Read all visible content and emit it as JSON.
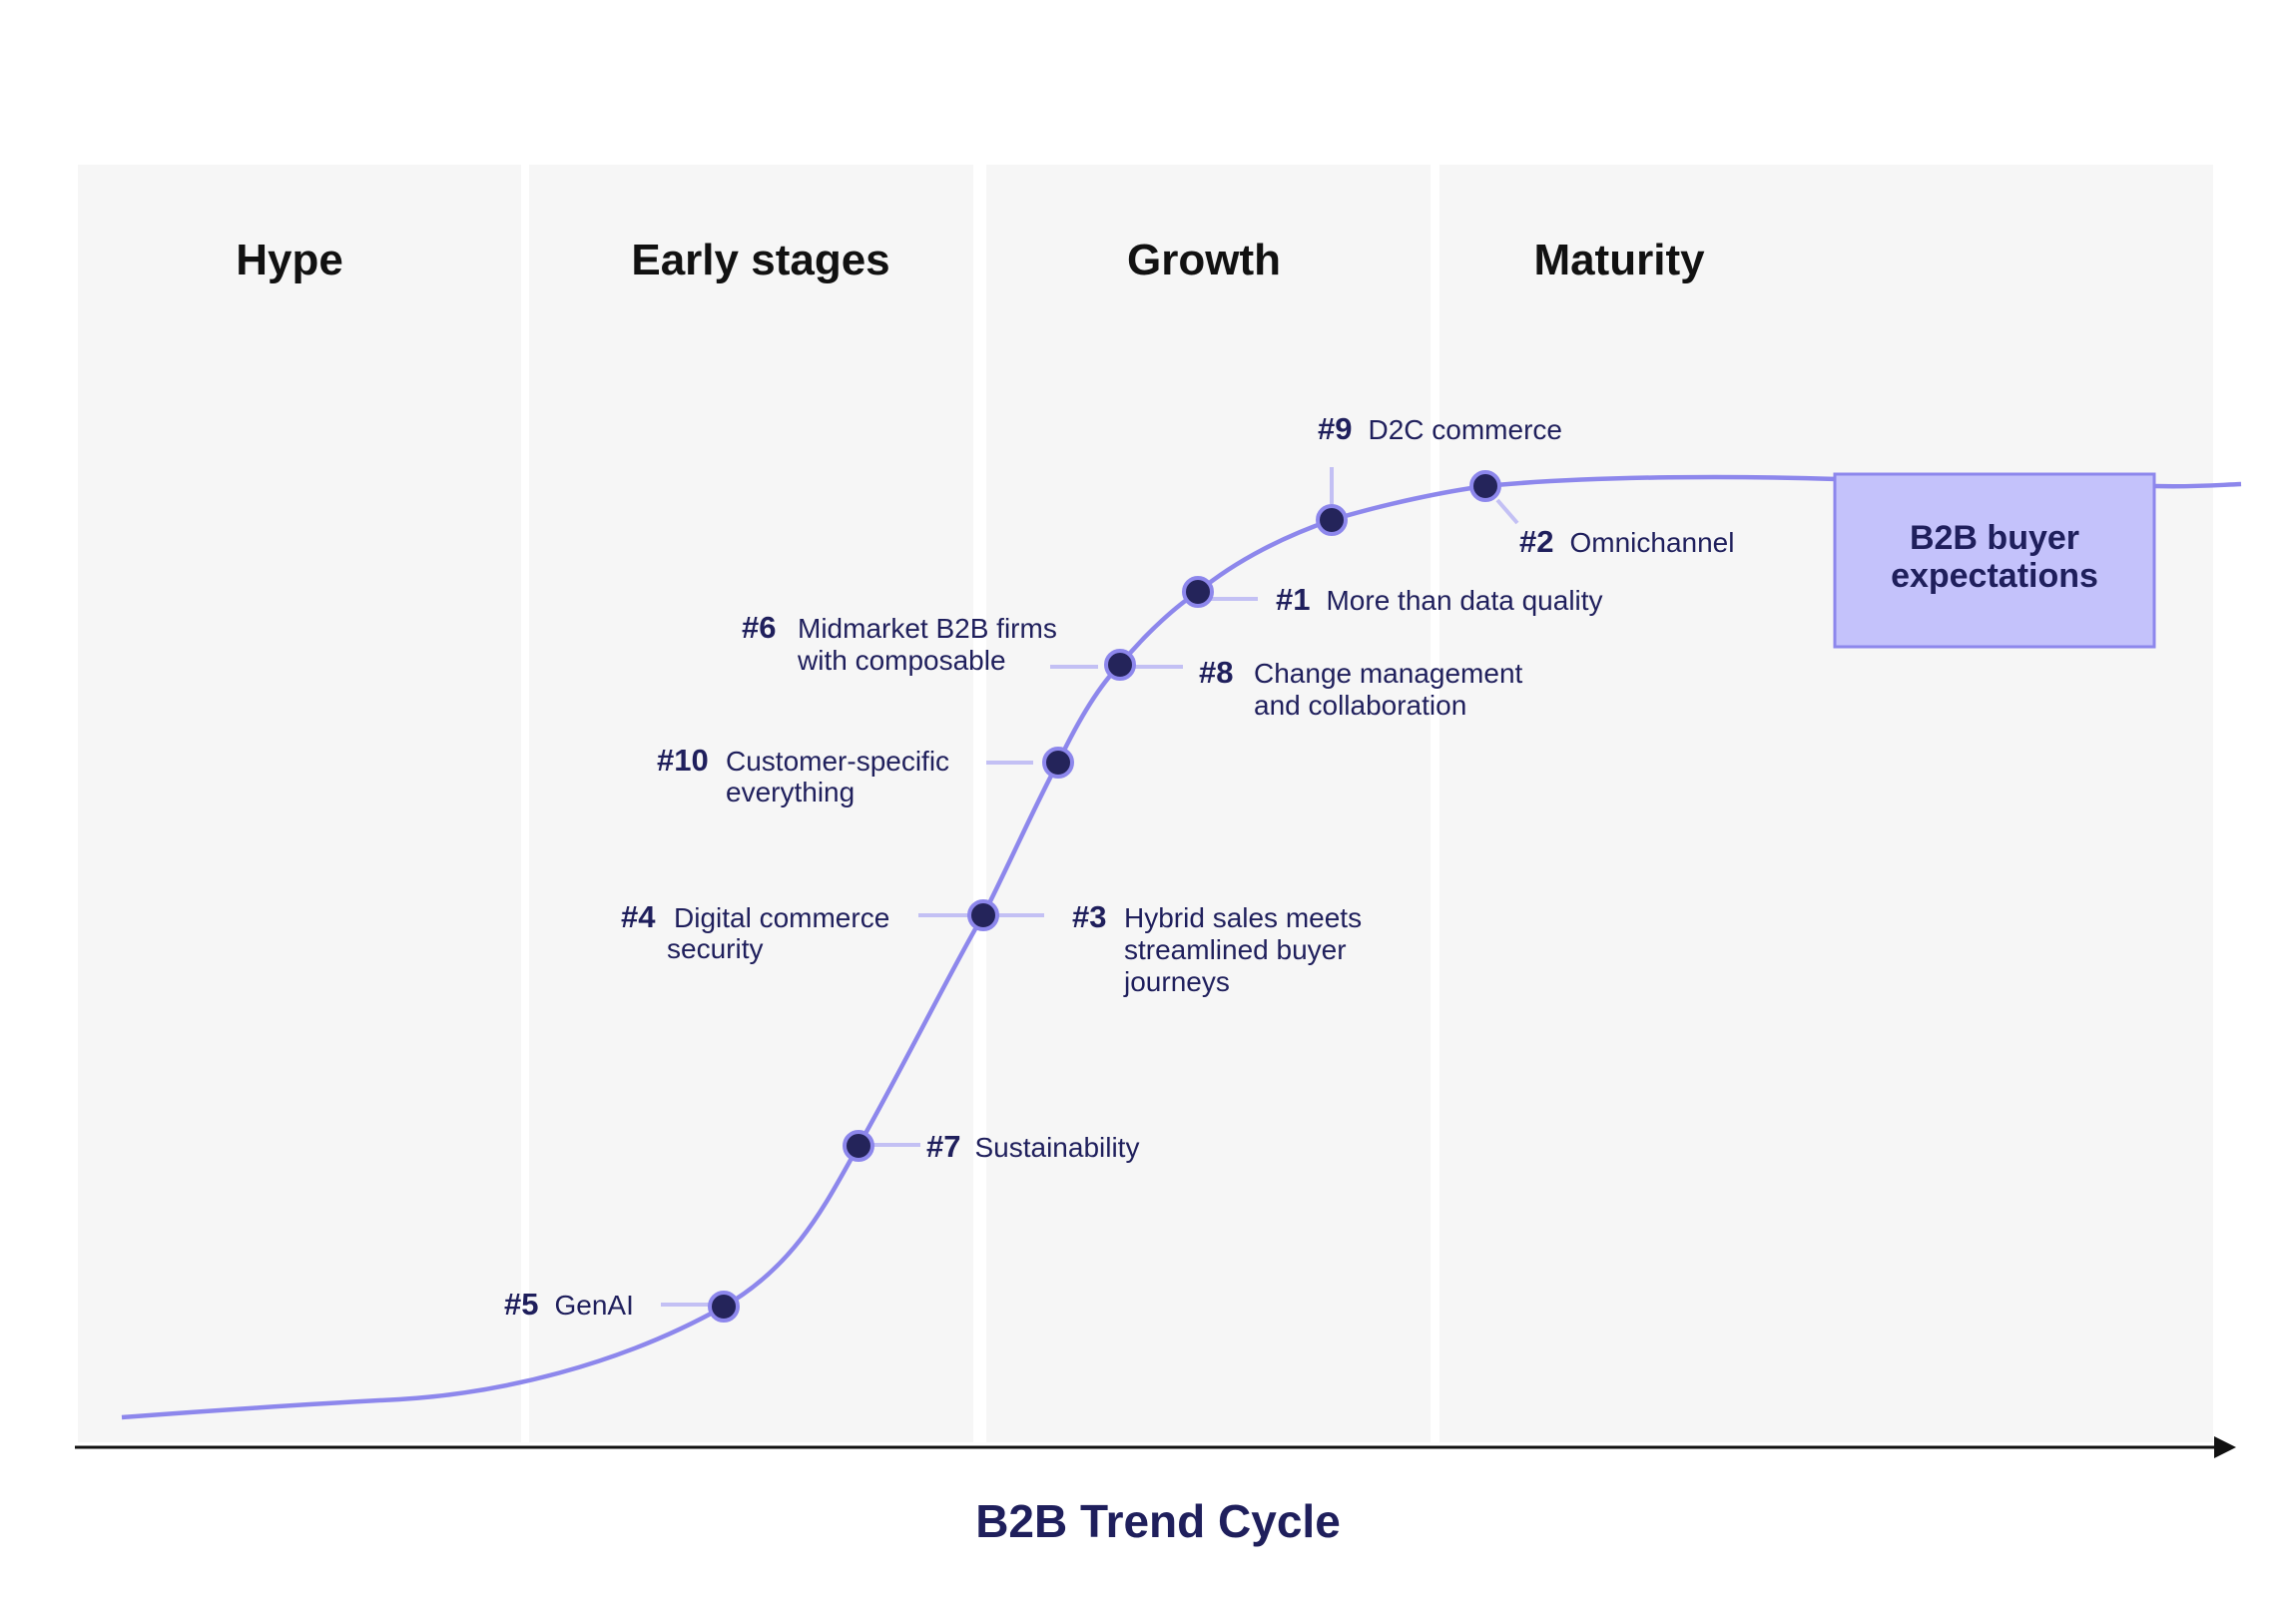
{
  "stages": [
    {
      "name": "Hype"
    },
    {
      "name": "Early stages"
    },
    {
      "name": "Growth"
    },
    {
      "name": "Maturity"
    }
  ],
  "axis_title": "B2B Trend Cycle",
  "box": {
    "line1": "B2B buyer",
    "line2": "expectations"
  },
  "trends": [
    {
      "num": "#5",
      "lines": [
        "GenAI"
      ]
    },
    {
      "num": "#7",
      "lines": [
        "Sustainability"
      ]
    },
    {
      "num": "#4",
      "lines": [
        "Digital commerce",
        "security"
      ]
    },
    {
      "num": "#3",
      "lines": [
        "Hybrid sales meets",
        "streamlined buyer",
        "journeys"
      ]
    },
    {
      "num": "#10",
      "lines": [
        "Customer-specific",
        "everything"
      ]
    },
    {
      "num": "#6",
      "lines": [
        "Midmarket B2B firms",
        "with composable"
      ]
    },
    {
      "num": "#8",
      "lines": [
        "Change management",
        "and collaboration"
      ]
    },
    {
      "num": "#1",
      "lines": [
        "More than data quality"
      ]
    },
    {
      "num": "#9",
      "lines": [
        "D2C commerce"
      ]
    },
    {
      "num": "#2",
      "lines": [
        "Omnichannel"
      ]
    }
  ],
  "colors": {
    "curve": "#8d87ec",
    "leader": "#c3c0f4",
    "dot": "#24245a",
    "dot_stroke": "#8d87ec",
    "panel": "#f6f6f6",
    "box_fill": "#c4c2fb",
    "box_stroke": "#8d87ec",
    "text_dark": "#1f1f5c",
    "axis": "#111111"
  }
}
